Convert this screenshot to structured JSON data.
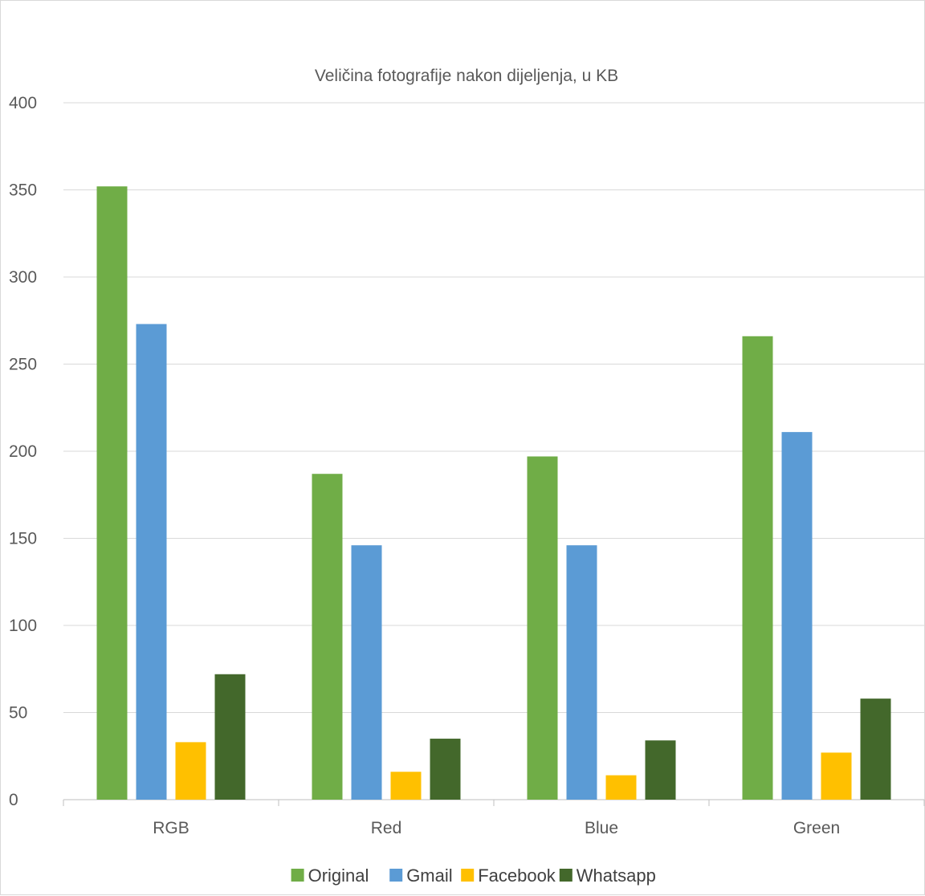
{
  "chart_data": {
    "type": "bar",
    "title": "Veličina fotografije nakon dijeljenja, u KB",
    "categories": [
      "RGB",
      "Red",
      "Blue",
      "Green"
    ],
    "series": [
      {
        "name": "Original",
        "color": "#70ad47",
        "values": [
          352,
          187,
          197,
          266
        ]
      },
      {
        "name": "Gmail",
        "color": "#5b9bd5",
        "values": [
          273,
          146,
          146,
          211
        ]
      },
      {
        "name": "Facebook",
        "color": "#ffc000",
        "values": [
          33,
          16,
          14,
          27
        ]
      },
      {
        "name": "Whatsapp",
        "color": "#43682b",
        "values": [
          72,
          35,
          34,
          58
        ]
      }
    ],
    "ylim": [
      0,
      400
    ],
    "yticks": [
      0,
      50,
      100,
      150,
      200,
      250,
      300,
      350,
      400
    ],
    "grid": true,
    "legend_position": "bottom"
  }
}
